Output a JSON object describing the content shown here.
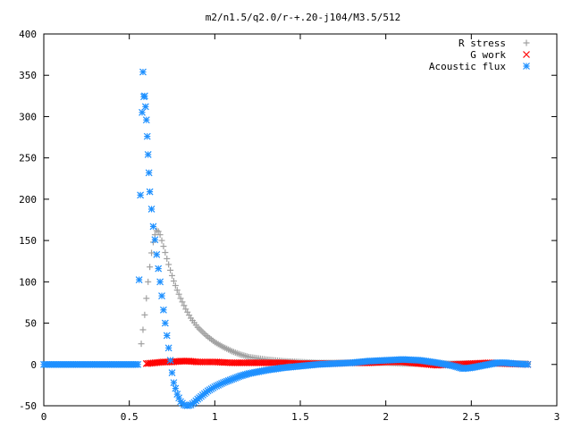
{
  "chart_data": {
    "type": "scatter",
    "title": "m2/n1.5/q2.0/r-+.20-j104/M3.5/512",
    "xlabel": "",
    "ylabel": "",
    "xlim": [
      0,
      3
    ],
    "ylim": [
      -50,
      400
    ],
    "x_ticks": [
      0,
      0.5,
      1,
      1.5,
      2,
      2.5,
      3
    ],
    "x_tick_labels": [
      "0",
      "0.5",
      "1",
      "1.5",
      "2",
      "2.5",
      "3"
    ],
    "y_ticks": [
      -50,
      0,
      50,
      100,
      150,
      200,
      250,
      300,
      350,
      400
    ],
    "y_tick_labels": [
      "-50",
      "0",
      "50",
      "100",
      "150",
      "200",
      "250",
      "300",
      "350",
      "400"
    ],
    "grid": false,
    "legend_position": "top-right",
    "series": [
      {
        "name": "R stress",
        "marker": "plus",
        "color": "#a0a0a0",
        "x": [
          0.57,
          0.58,
          0.59,
          0.6,
          0.61,
          0.62,
          0.63,
          0.64,
          0.65,
          0.66,
          0.67,
          0.68,
          0.69,
          0.7,
          0.72,
          0.74,
          0.76,
          0.78,
          0.8,
          0.83,
          0.86,
          0.9,
          0.95,
          1.0,
          1.05,
          1.1,
          1.15,
          1.2,
          1.3,
          1.4,
          1.5,
          1.6,
          1.7,
          1.8,
          1.9,
          2.0,
          2.1,
          2.2,
          2.3,
          2.4,
          2.5,
          2.6,
          2.7,
          2.83
        ],
        "y": [
          25,
          42,
          60,
          80,
          100,
          118,
          135,
          148,
          157,
          162,
          161,
          157,
          150,
          143,
          128,
          114,
          101,
          90,
          80,
          67,
          56,
          45,
          35,
          27,
          21,
          16,
          12,
          9,
          6,
          4,
          3,
          2,
          2,
          2,
          2,
          2,
          1,
          1,
          1,
          1,
          1,
          1,
          1,
          1
        ]
      },
      {
        "name": "G work",
        "marker": "cross",
        "color": "#ff0000",
        "x": [
          0.6,
          0.65,
          0.7,
          0.75,
          0.8,
          0.85,
          0.9,
          1.0,
          1.1,
          1.2,
          1.3,
          1.4,
          1.5,
          1.6,
          1.7,
          1.8,
          1.9,
          2.0,
          2.1,
          2.2,
          2.3,
          2.4,
          2.5,
          2.6,
          2.7,
          2.83
        ],
        "y": [
          1,
          2,
          3,
          3,
          4,
          4,
          3,
          3,
          2,
          2,
          2,
          2,
          1,
          1,
          1,
          2,
          2,
          3,
          3,
          1,
          -1,
          0,
          1,
          2,
          1,
          0
        ]
      },
      {
        "name": "Acoustic flux",
        "marker": "star",
        "color": "#1e90ff",
        "x": [
          0.0,
          0.05,
          0.1,
          0.15,
          0.2,
          0.25,
          0.3,
          0.35,
          0.4,
          0.45,
          0.5,
          0.55,
          0.565,
          0.575,
          0.58,
          0.585,
          0.59,
          0.595,
          0.6,
          0.605,
          0.61,
          0.615,
          0.62,
          0.63,
          0.64,
          0.65,
          0.66,
          0.67,
          0.68,
          0.69,
          0.7,
          0.71,
          0.72,
          0.73,
          0.74,
          0.75,
          0.76,
          0.78,
          0.8,
          0.82,
          0.84,
          0.86,
          0.88,
          0.9,
          0.93,
          0.96,
          1.0,
          1.05,
          1.1,
          1.15,
          1.2,
          1.3,
          1.4,
          1.5,
          1.6,
          1.7,
          1.8,
          1.9,
          2.0,
          2.1,
          2.2,
          2.3,
          2.4,
          2.45,
          2.5,
          2.55,
          2.6,
          2.65,
          2.7,
          2.75,
          2.83
        ],
        "y": [
          0,
          0,
          0,
          0,
          0,
          0,
          0,
          0,
          0,
          0,
          0,
          0,
          205,
          305,
          354,
          324,
          325,
          312,
          296,
          276,
          254,
          232,
          209,
          188,
          167,
          151,
          133,
          116,
          100,
          83,
          66,
          50,
          35,
          20,
          5,
          -10,
          -22,
          -36,
          -45,
          -49,
          -50,
          -49,
          -46,
          -42,
          -37,
          -32,
          -27,
          -22,
          -18,
          -14,
          -11,
          -7,
          -4,
          -2,
          0,
          1,
          2,
          4,
          5,
          6,
          5,
          2,
          -2,
          -5,
          -4,
          -2,
          0,
          2,
          2,
          1,
          0
        ]
      }
    ]
  }
}
